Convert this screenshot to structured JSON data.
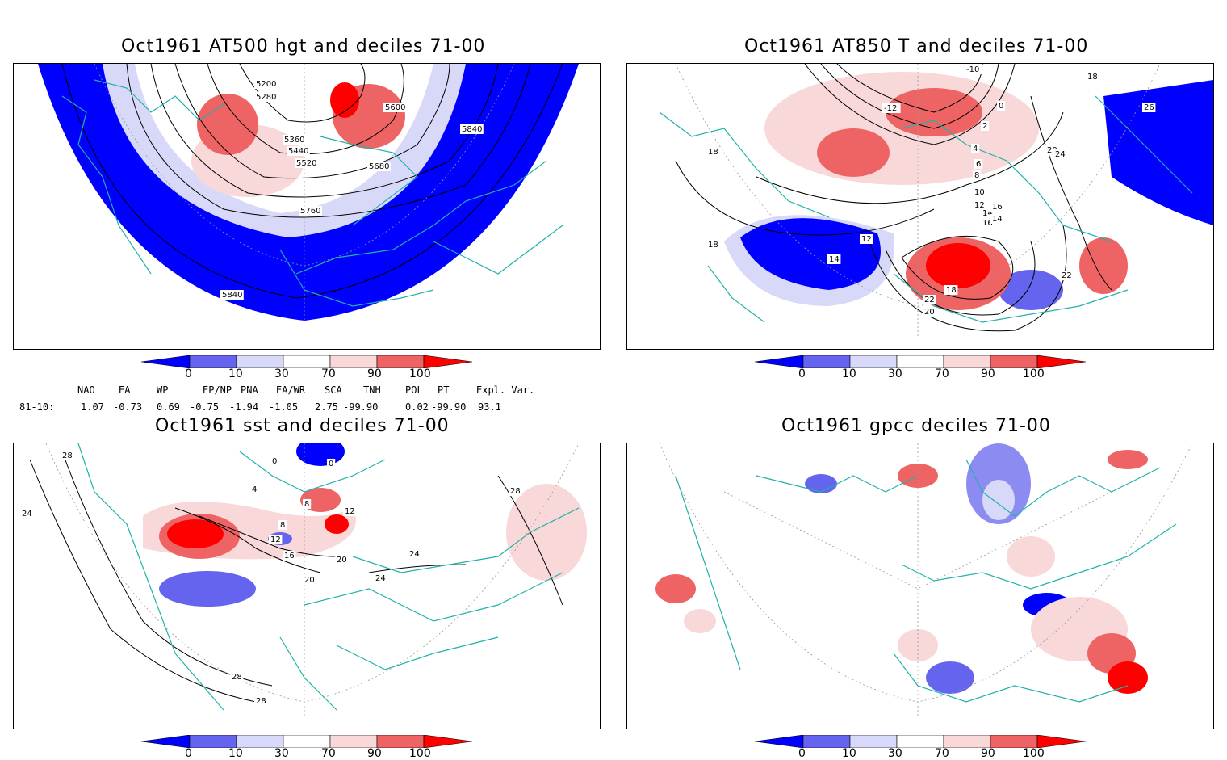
{
  "panels": [
    {
      "title": "Oct1961 AT500 hgt and deciles 71-00",
      "contour_labels": [
        "5200",
        "5280",
        "5360",
        "5440",
        "5520",
        "5600",
        "5680",
        "5760",
        "5840",
        "5840"
      ]
    },
    {
      "title": "Oct1961 AT850 T and deciles 71-00",
      "contour_labels": [
        "-10",
        "-12",
        "0",
        "2",
        "4",
        "6",
        "8",
        "10",
        "12",
        "14",
        "16",
        "18",
        "18",
        "18",
        "20",
        "22",
        "24",
        "26",
        "12",
        "14",
        "16",
        "14",
        "20",
        "22",
        "18",
        "20",
        "24"
      ]
    },
    {
      "title": "Oct1961 sst and deciles 71-00",
      "contour_labels": [
        "28",
        "24",
        "0",
        "0",
        "4",
        "8",
        "8",
        "12",
        "12",
        "16",
        "20",
        "20",
        "24",
        "24",
        "28",
        "28",
        "28"
      ]
    },
    {
      "title": "Oct1961 gpcc deciles 71-00",
      "contour_labels": []
    }
  ],
  "colorbar": {
    "labels": [
      "0",
      "10",
      "30",
      "70",
      "90",
      "100"
    ],
    "colors": [
      "#0000ff",
      "#6464ee",
      "#d8d8f8",
      "#ffffff",
      "#f8d8d8",
      "#ee6464",
      "#ff0000"
    ]
  },
  "indices": {
    "header": [
      "NAO",
      "EA",
      "WP",
      "EP/NP",
      "PNA",
      "EA/WR",
      "SCA",
      "TNH",
      "POL",
      "PT",
      "Expl. Var."
    ],
    "row_label": "81-10:",
    "values": [
      "1.07",
      "-0.73",
      "0.69",
      "-0.75",
      "-1.94",
      "-1.05",
      "2.75",
      "-99.90",
      "0.02",
      "-99.90",
      "93.1"
    ]
  }
}
